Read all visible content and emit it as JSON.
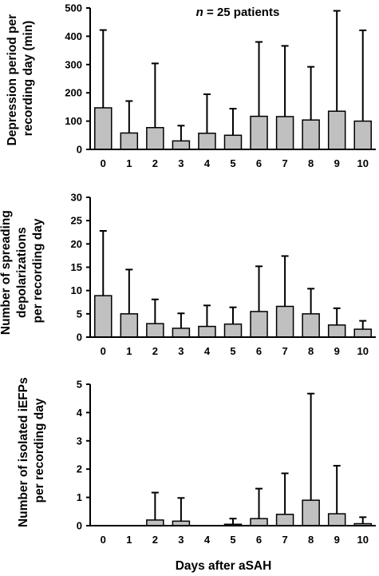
{
  "chart_data": [
    {
      "type": "bar",
      "annotation_prefix": "n",
      "annotation_suffix": " = 25 patients",
      "ylabel_lines": [
        "Depression period per",
        "recording day (min)"
      ],
      "xlabel": "",
      "categories": [
        "0",
        "1",
        "2",
        "3",
        "4",
        "5",
        "6",
        "7",
        "8",
        "9",
        "10"
      ],
      "values": [
        147,
        58,
        77,
        30,
        57,
        50,
        117,
        116,
        104,
        135,
        100
      ],
      "error_upper": [
        422,
        171,
        304,
        84,
        195,
        144,
        380,
        366,
        292,
        490,
        421
      ],
      "ylim": [
        0,
        500
      ],
      "yticks": [
        0,
        100,
        200,
        300,
        400,
        500
      ],
      "ytick_labels": [
        "0",
        "100",
        "200",
        "300",
        "400",
        "500"
      ],
      "grid": false
    },
    {
      "type": "bar",
      "ylabel_lines": [
        "Number of spreading",
        "depolarizations",
        "per recording day"
      ],
      "xlabel": "",
      "categories": [
        "0",
        "1",
        "2",
        "3",
        "4",
        "5",
        "6",
        "7",
        "8",
        "9",
        "10"
      ],
      "values": [
        8.9,
        5.0,
        2.9,
        1.9,
        2.3,
        2.8,
        5.5,
        6.6,
        5.0,
        2.6,
        1.7
      ],
      "error_upper": [
        22.8,
        14.5,
        8.1,
        5.1,
        6.8,
        6.4,
        15.2,
        17.4,
        10.4,
        6.2,
        3.5
      ],
      "ylim": [
        0,
        30
      ],
      "yticks": [
        0,
        5,
        10,
        15,
        20,
        25,
        30
      ],
      "ytick_labels": [
        "0",
        "5",
        "10",
        "15",
        "20",
        "25",
        "30"
      ],
      "grid": false
    },
    {
      "type": "bar",
      "ylabel_lines": [
        "Number of isolated iEFPs",
        "per recording day"
      ],
      "xlabel": "Days after aSAH",
      "categories": [
        "0",
        "1",
        "2",
        "3",
        "4",
        "5",
        "6",
        "7",
        "8",
        "9",
        "10"
      ],
      "values": [
        0,
        0,
        0.2,
        0.16,
        0,
        0.05,
        0.25,
        0.4,
        0.9,
        0.42,
        0.07
      ],
      "error_upper": [
        0,
        0,
        1.17,
        0.98,
        0,
        0.25,
        1.31,
        1.85,
        4.67,
        2.12,
        0.3
      ],
      "ylim": [
        0,
        5
      ],
      "yticks": [
        0,
        1,
        2,
        3,
        4,
        5
      ],
      "ytick_labels": [
        "0",
        "1",
        "2",
        "3",
        "4",
        "5"
      ],
      "grid": false
    }
  ]
}
